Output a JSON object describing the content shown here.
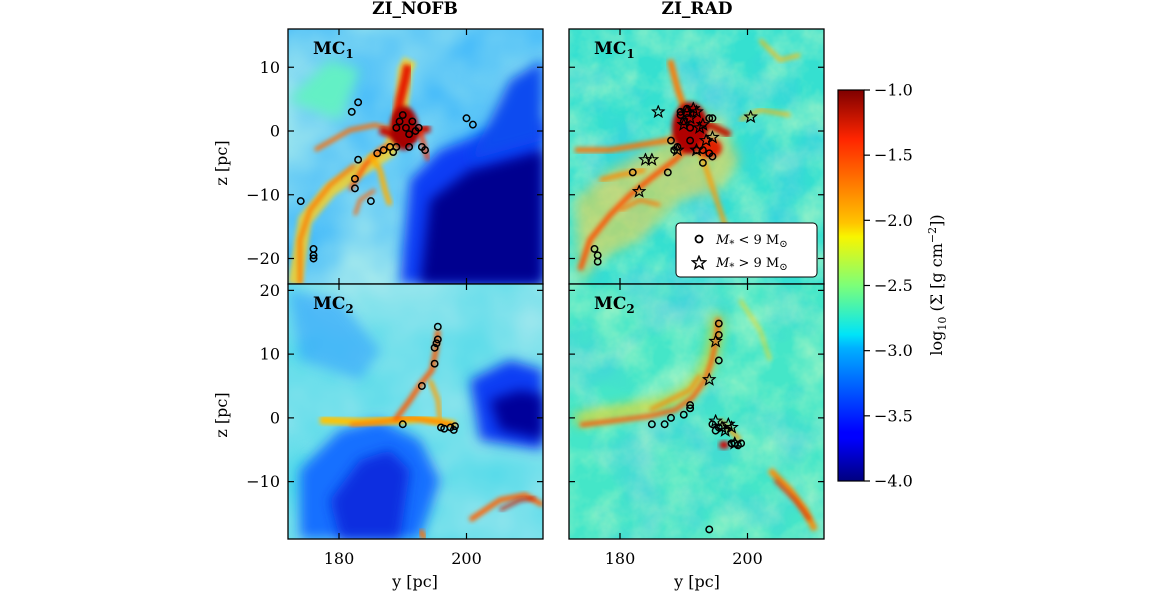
{
  "chart_data": {
    "type": "heatmap",
    "columns": [
      "ZI_NOFB",
      "ZI_RAD"
    ],
    "rows": [
      "MC1",
      "MC2"
    ],
    "xlabel": "y [pc]",
    "ylabel": "z [pc]",
    "xlim": [
      172,
      212
    ],
    "x_ticks": [
      180,
      200
    ],
    "row_ylim": {
      "MC1": [
        -24,
        16
      ],
      "MC2": [
        -19,
        21
      ]
    },
    "row_yticks": {
      "MC1": [
        10,
        0,
        -10,
        -20
      ],
      "MC2": [
        20,
        10,
        0,
        -10
      ]
    },
    "colorbar": {
      "label": "log10 (Σ [g cm^-2])",
      "label_main": "log",
      "label_sub": "10",
      "label_rest": " (Σ [g cm",
      "label_sup": "−2",
      "label_end": "])",
      "min": -4.0,
      "max": -1.0,
      "ticks": [
        "−1.0",
        "−1.5",
        "−2.0",
        "−2.5",
        "−3.0",
        "−3.5",
        "−4.0"
      ],
      "colormap": "jet"
    },
    "legend": {
      "placement": "lower-right of ZI_RAD MC1 panel",
      "items": [
        {
          "marker": "circle",
          "label_var": "M",
          "label_sub": "*",
          "label_text": " < 9 M",
          "label_unit_sub": "⊙"
        },
        {
          "marker": "star",
          "label_var": "M",
          "label_sub": "*",
          "label_text": " > 9 M",
          "label_unit_sub": "⊙"
        }
      ]
    },
    "panels": [
      {
        "column": "ZI_NOFB",
        "row": "MC1",
        "label_main": "MC",
        "label_sub": "1",
        "circles": [
          [
            174,
            -11
          ],
          [
            176,
            -18.5
          ],
          [
            176,
            -19.5
          ],
          [
            176,
            -20
          ],
          [
            182.5,
            -7.5
          ],
          [
            182.5,
            -9
          ],
          [
            183,
            -4.5
          ],
          [
            185,
            -11
          ],
          [
            182,
            3
          ],
          [
            183,
            4.5
          ],
          [
            186,
            -3.5
          ],
          [
            187,
            -3
          ],
          [
            188,
            -2.5
          ],
          [
            188.5,
            -3.3
          ],
          [
            189,
            -2.5
          ],
          [
            189,
            0.5
          ],
          [
            189.5,
            1.5
          ],
          [
            190,
            2.5
          ],
          [
            190.5,
            0.5
          ],
          [
            191,
            -0.5
          ],
          [
            191,
            -2.5
          ],
          [
            191.5,
            1.5
          ],
          [
            192,
            0
          ],
          [
            192.5,
            0.5
          ],
          [
            193,
            -2.5
          ],
          [
            193.5,
            -3
          ],
          [
            200,
            2
          ],
          [
            201,
            1
          ]
        ],
        "stars": []
      },
      {
        "column": "ZI_RAD",
        "row": "MC1",
        "label_main": "MC",
        "label_sub": "1",
        "circles": [
          [
            176,
            -18.5
          ],
          [
            176.5,
            -19.5
          ],
          [
            176.5,
            -20.5
          ],
          [
            182,
            -6.5
          ],
          [
            187.5,
            -6.5
          ],
          [
            188,
            -1.5
          ],
          [
            188.5,
            -3
          ],
          [
            189,
            -2.5
          ],
          [
            189.5,
            2.5
          ],
          [
            190,
            1.5
          ],
          [
            191,
            0.5
          ],
          [
            192,
            -3
          ],
          [
            193,
            -3
          ],
          [
            194,
            -3.5
          ],
          [
            194.5,
            -4
          ],
          [
            194,
            2
          ],
          [
            194.5,
            2
          ],
          [
            193,
            -5
          ],
          [
            189.5,
            3
          ],
          [
            190.5,
            3.5
          ],
          [
            191,
            -1.5
          ]
        ],
        "stars": [
          [
            183,
            -9.5
          ],
          [
            184,
            -4.5
          ],
          [
            185,
            -4.5
          ],
          [
            186,
            3
          ],
          [
            189,
            -3
          ],
          [
            190,
            1
          ],
          [
            190.5,
            3
          ],
          [
            191,
            2
          ],
          [
            191.5,
            3.5
          ],
          [
            192,
            3
          ],
          [
            192.5,
            0.5
          ],
          [
            193,
            1
          ],
          [
            193.5,
            -1.5
          ],
          [
            194.5,
            -1
          ],
          [
            192,
            -3
          ],
          [
            200.5,
            2.2
          ]
        ]
      },
      {
        "column": "ZI_NOFB",
        "row": "MC2",
        "label_main": "MC",
        "label_sub": "2",
        "circles": [
          [
            190,
            -1
          ],
          [
            193,
            5
          ],
          [
            195,
            8.5
          ],
          [
            195,
            11
          ],
          [
            195.3,
            11.7
          ],
          [
            195.5,
            12.3
          ],
          [
            195.5,
            14.3
          ],
          [
            196,
            -1.5
          ],
          [
            196.5,
            -1.7
          ],
          [
            197.5,
            -1.5
          ],
          [
            198,
            -1.9
          ],
          [
            198.2,
            -1.3
          ]
        ],
        "stars": []
      },
      {
        "column": "ZI_RAD",
        "row": "MC2",
        "label_main": "MC",
        "label_sub": "2",
        "circles": [
          [
            185,
            -1
          ],
          [
            187,
            -1
          ],
          [
            188,
            0
          ],
          [
            190,
            0.5
          ],
          [
            191,
            1.5
          ],
          [
            191,
            2
          ],
          [
            194.5,
            -1
          ],
          [
            195.5,
            -1.5
          ],
          [
            195,
            -2
          ],
          [
            195.5,
            9
          ],
          [
            195.5,
            13
          ],
          [
            195.5,
            14.8
          ],
          [
            197.5,
            -4
          ],
          [
            198,
            -4
          ],
          [
            198.5,
            -4.3
          ],
          [
            199,
            -4
          ],
          [
            194,
            -17.5
          ]
        ],
        "stars": [
          [
            194,
            6
          ],
          [
            195,
            12
          ],
          [
            195,
            -0.5
          ],
          [
            196,
            -1.5
          ],
          [
            196.5,
            -2
          ],
          [
            197,
            -1
          ],
          [
            197.5,
            -1.5
          ],
          [
            198,
            -4
          ]
        ]
      }
    ]
  }
}
